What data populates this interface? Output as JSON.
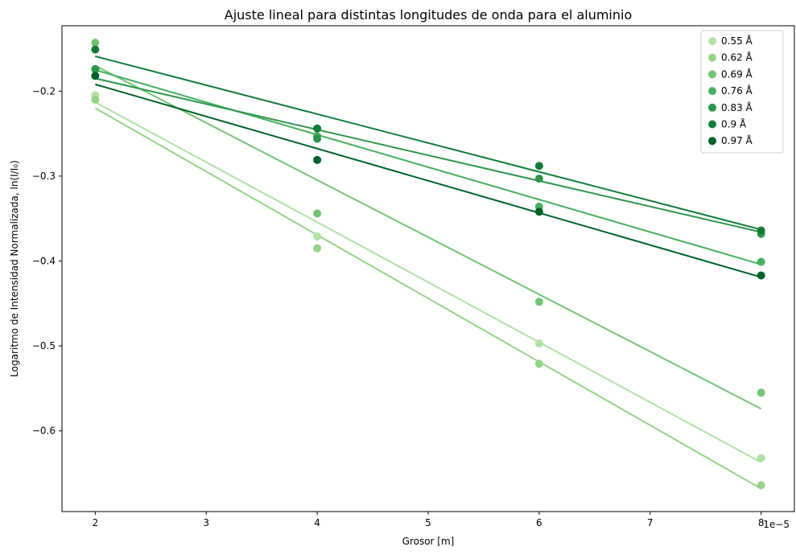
{
  "chart_data": {
    "type": "scatter",
    "title": "Ajuste lineal para distintas longitudes de onda para el aluminio",
    "xlabel": "Grosor [m]",
    "ylabel": "Logaritmo de Intensidad Normalizada, ln(I/I₀)",
    "x_offset_label": "1e−5",
    "xlim": [
      1.7,
      8.3
    ],
    "ylim": [
      -0.695,
      -0.123
    ],
    "xticks": [
      2,
      3,
      4,
      5,
      6,
      7,
      8
    ],
    "xtick_labels": [
      "2",
      "3",
      "4",
      "5",
      "6",
      "7",
      "8"
    ],
    "yticks": [
      -0.2,
      -0.3,
      -0.4,
      -0.5,
      -0.6
    ],
    "ytick_labels": [
      "−0.2",
      "−0.3",
      "−0.4",
      "−0.5",
      "−0.6"
    ],
    "legend_position": "top-right",
    "grid": false,
    "x": [
      2,
      4,
      6,
      8
    ],
    "series": [
      {
        "name": "0.55 Å",
        "color": "#b2e0a5",
        "values": [
          -0.205,
          -0.371,
          -0.497,
          -0.632
        ],
        "fit": [
          -0.213,
          -0.637
        ]
      },
      {
        "name": "0.62 Å",
        "color": "#97d387",
        "values": [
          -0.21,
          -0.385,
          -0.521,
          -0.664
        ],
        "fit": [
          -0.22,
          -0.668
        ]
      },
      {
        "name": "0.69 Å",
        "color": "#73c374",
        "values": [
          -0.143,
          -0.344,
          -0.448,
          -0.555
        ],
        "fit": [
          -0.17,
          -0.574
        ]
      },
      {
        "name": "0.76 Å",
        "color": "#4aaf62",
        "values": [
          -0.174,
          -0.253,
          -0.336,
          -0.401
        ],
        "fit": [
          -0.175,
          -0.404
        ]
      },
      {
        "name": "0.83 Å",
        "color": "#2e954e",
        "values": [
          -0.174,
          -0.256,
          -0.303,
          -0.368
        ],
        "fit": [
          -0.185,
          -0.366
        ]
      },
      {
        "name": "0.9 Å",
        "color": "#137b3a",
        "values": [
          -0.151,
          -0.244,
          -0.288,
          -0.364
        ],
        "fit": [
          -0.159,
          -0.363
        ]
      },
      {
        "name": "0.97 Å",
        "color": "#00622a",
        "values": [
          -0.182,
          -0.281,
          -0.342,
          -0.417
        ],
        "fit": [
          -0.192,
          -0.419
        ]
      }
    ]
  }
}
